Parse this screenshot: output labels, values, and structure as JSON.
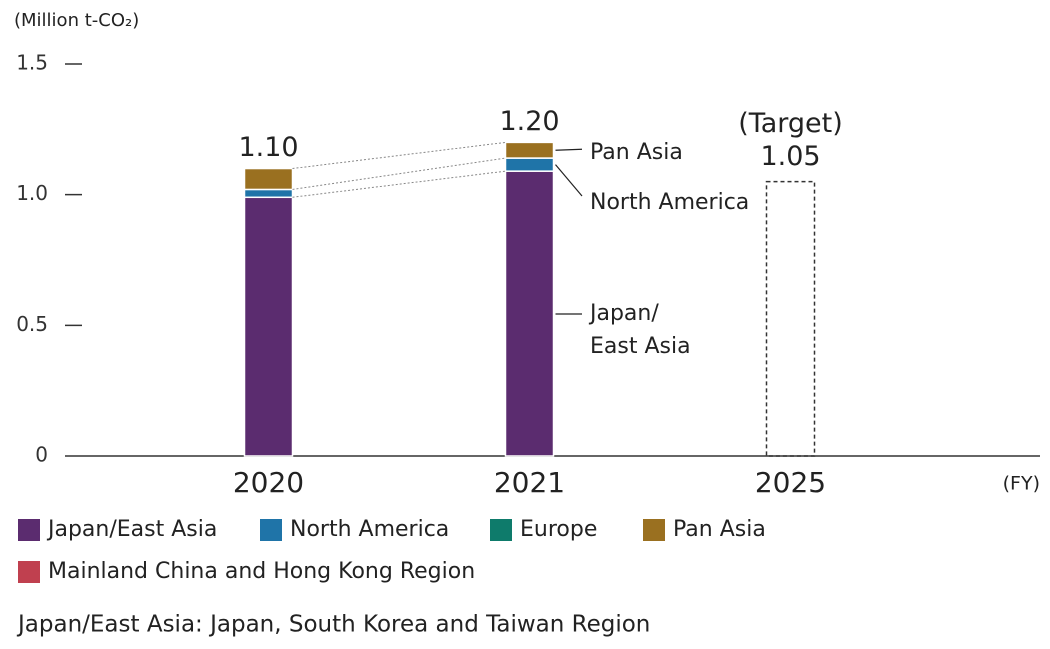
{
  "chart_data": {
    "type": "stacked-bar",
    "y_label": "(Million t-CO₂)",
    "x_label": "(FY)",
    "categories": [
      "2020",
      "2021",
      "2025"
    ],
    "series": [
      {
        "name": "Japan/East Asia",
        "color": "#5b2c6f",
        "values": [
          0.99,
          1.09,
          null
        ]
      },
      {
        "name": "North America",
        "color": "#1f74a8",
        "values": [
          0.03,
          0.05,
          null
        ]
      },
      {
        "name": "Europe",
        "color": "#0e7b6b",
        "values": [
          0,
          0,
          null
        ]
      },
      {
        "name": "Pan Asia",
        "color": "#9a7020",
        "values": [
          0.08,
          0.06,
          null
        ]
      },
      {
        "name": "Mainland China and Hong Kong Region",
        "color": "#c0404f",
        "values": [
          0,
          0,
          null
        ]
      }
    ],
    "totals": {
      "values": [
        1.1,
        1.2,
        1.05
      ],
      "value_labels": [
        "1.10",
        "1.20",
        "1.05"
      ]
    },
    "target_label": "(Target)",
    "callouts": {
      "pan_asia": "Pan Asia",
      "north_america": "North America",
      "japan": [
        "Japan/",
        "East Asia"
      ]
    },
    "ylim": [
      0,
      1.5
    ],
    "yticks": [
      0,
      0.5,
      {
        "value": 1,
        "label": "1.0"
      },
      1.5
    ],
    "footnote": "Japan/East Asia: Japan, South Korea and Taiwan Region"
  }
}
